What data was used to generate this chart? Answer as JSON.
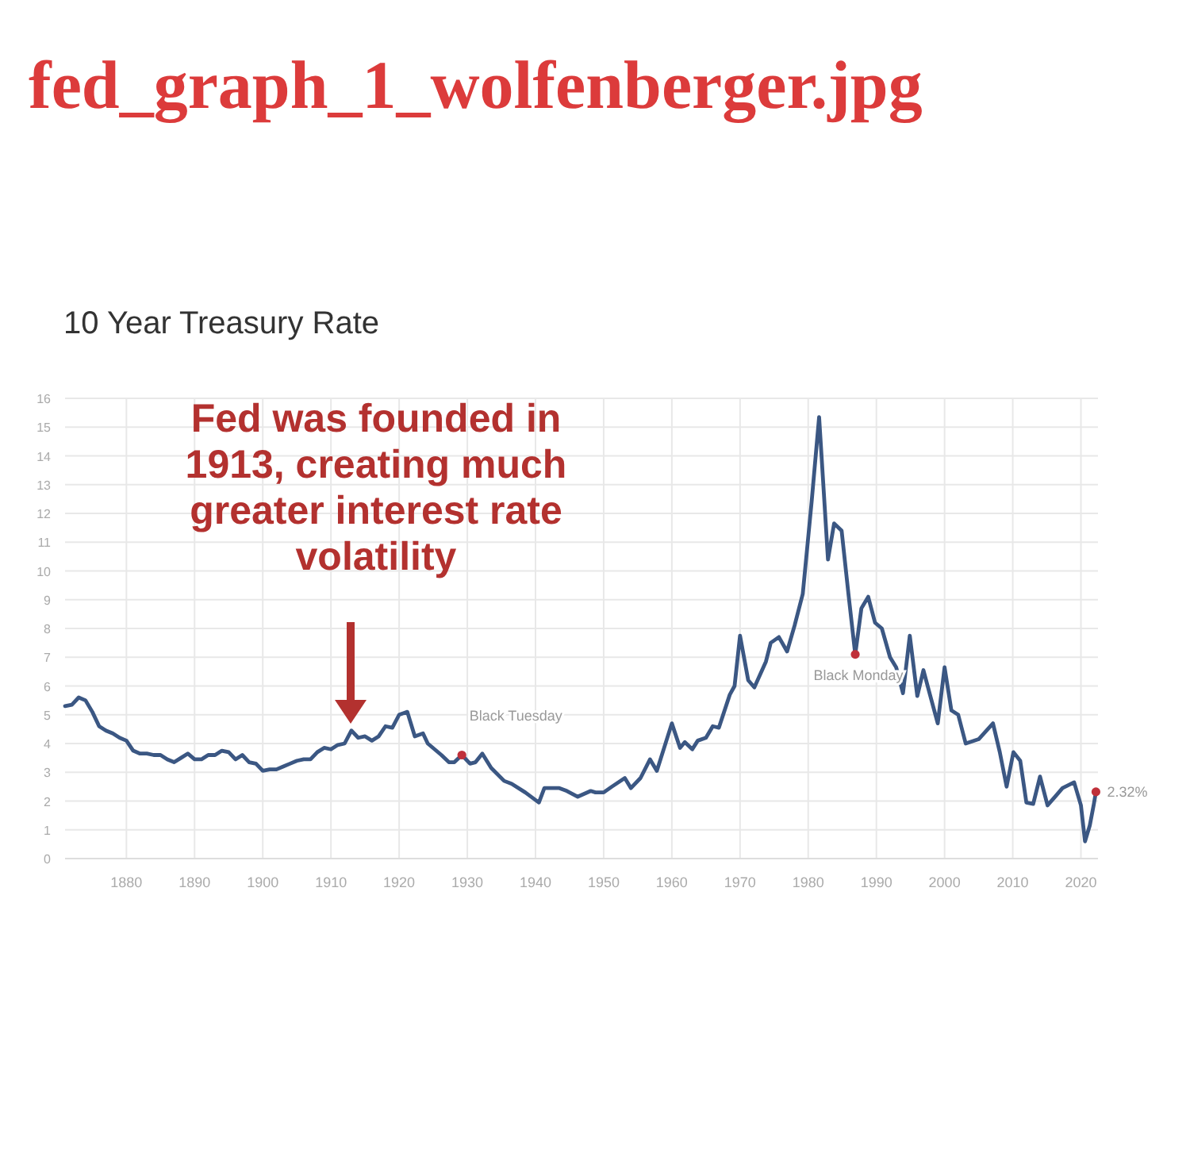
{
  "chart_data": {
    "type": "line",
    "title": "fed_graph_1_wolfenberger.jpg",
    "subtitle": "10 Year Treasury Rate",
    "x": [
      1871,
      1872,
      1873,
      1874,
      1875,
      1876,
      1877,
      1878,
      1879,
      1880,
      1881,
      1882,
      1883,
      1884,
      1885,
      1886,
      1887,
      1888,
      1889,
      1890,
      1891,
      1892,
      1893,
      1894,
      1895,
      1896,
      1897,
      1898,
      1899,
      1900,
      1901,
      1902,
      1903,
      1904,
      1905,
      1906,
      1907,
      1908,
      1909,
      1910,
      1911,
      1912,
      1913,
      1914,
      1915,
      1916,
      1917,
      1918,
      1919,
      1920,
      1921.2,
      1922.3,
      1923.5,
      1924.2,
      1926.2,
      1927.3,
      1928.1,
      1929.2,
      1930.4,
      1931.2,
      1932.2,
      1933.5,
      1935.4,
      1936.5,
      1938.5,
      1940.5,
      1941.3,
      1943.5,
      1944.6,
      1946.2,
      1948.1,
      1948.8,
      1950,
      1951.2,
      1953.1,
      1954,
      1955.4,
      1956.8,
      1957.8,
      1960,
      1961.2,
      1961.9,
      1963,
      1963.8,
      1965,
      1966,
      1966.9,
      1968.5,
      1969.2,
      1970,
      1971.2,
      1972.1,
      1973.8,
      1974.5,
      1975.7,
      1976.9,
      1978,
      1979.2,
      1980.5,
      1981.6,
      1982.9,
      1983.8,
      1984.9,
      1985.9,
      1986.9,
      1987.8,
      1988.8,
      1989.8,
      1990.8,
      1992,
      1992.9,
      1993.9,
      1994.9,
      1996,
      1996.9,
      1997.8,
      1999,
      2000,
      2001,
      2002,
      2003.1,
      2005,
      2007.1,
      2008.1,
      2009.1,
      2010.1,
      2011.1,
      2012,
      2013,
      2014,
      2015.1,
      2016.2,
      2017.3,
      2019,
      2020,
      2020.6,
      2021.3,
      2021.9,
      2022.2
    ],
    "series": [
      {
        "color": "#3b5783",
        "values": [
          5.3,
          5.35,
          5.6,
          5.5,
          5.1,
          4.6,
          4.45,
          4.35,
          4.2,
          4.1,
          3.75,
          3.65,
          3.65,
          3.6,
          3.6,
          3.45,
          3.35,
          3.5,
          3.65,
          3.45,
          3.45,
          3.6,
          3.6,
          3.75,
          3.7,
          3.45,
          3.6,
          3.35,
          3.3,
          3.05,
          3.1,
          3.1,
          3.2,
          3.3,
          3.4,
          3.45,
          3.45,
          3.7,
          3.85,
          3.8,
          3.95,
          4,
          4.45,
          4.2,
          4.25,
          4.1,
          4.25,
          4.6,
          4.55,
          5,
          5.1,
          4.25,
          4.35,
          4,
          3.6,
          3.35,
          3.35,
          3.6,
          3.3,
          3.35,
          3.65,
          3.15,
          2.7,
          2.6,
          2.3,
          1.95,
          2.45,
          2.45,
          2.35,
          2.15,
          2.35,
          2.3,
          2.3,
          2.5,
          2.8,
          2.45,
          2.8,
          3.45,
          3.05,
          4.7,
          3.85,
          4.05,
          3.8,
          4.1,
          4.2,
          4.6,
          4.55,
          5.7,
          6,
          7.75,
          6.2,
          5.95,
          6.85,
          7.5,
          7.7,
          7.2,
          8.1,
          9.2,
          12.4,
          15.35,
          10.4,
          11.65,
          11.4,
          9.2,
          7.1,
          8.7,
          9.1,
          8.2,
          8,
          7,
          6.65,
          5.75,
          7.75,
          5.65,
          6.55,
          5.75,
          4.7,
          6.65,
          5.15,
          5,
          4,
          4.15,
          4.7,
          3.7,
          2.5,
          3.7,
          3.4,
          1.95,
          1.9,
          2.85,
          1.85,
          2.15,
          2.45,
          2.65,
          1.85,
          0.6,
          1.15,
          1.9,
          2.32
        ]
      }
    ],
    "xlim": [
      1871,
      2022.5
    ],
    "xticks": [
      1880,
      1890,
      1900,
      1910,
      1920,
      1930,
      1940,
      1950,
      1960,
      1970,
      1980,
      1990,
      2000,
      2010,
      2020
    ],
    "ylim": [
      0,
      16
    ],
    "yticks": [
      0,
      1,
      2,
      3,
      4,
      5,
      6,
      7,
      8,
      9,
      10,
      11,
      12,
      13,
      14,
      15,
      16
    ],
    "grid": true,
    "marker": "none",
    "line_style": "solid",
    "annotations": [
      "Fed was founded in 1913, creating much greater interest rate volatility",
      {
        "text": "Black Tuesday",
        "x": 1929.2,
        "y": 3.6
      },
      {
        "text": "Black Monday",
        "x": 1986.9,
        "y": 7.1
      },
      {
        "text": "2.32%",
        "x": 2022.2,
        "y": 2.32
      }
    ]
  }
}
